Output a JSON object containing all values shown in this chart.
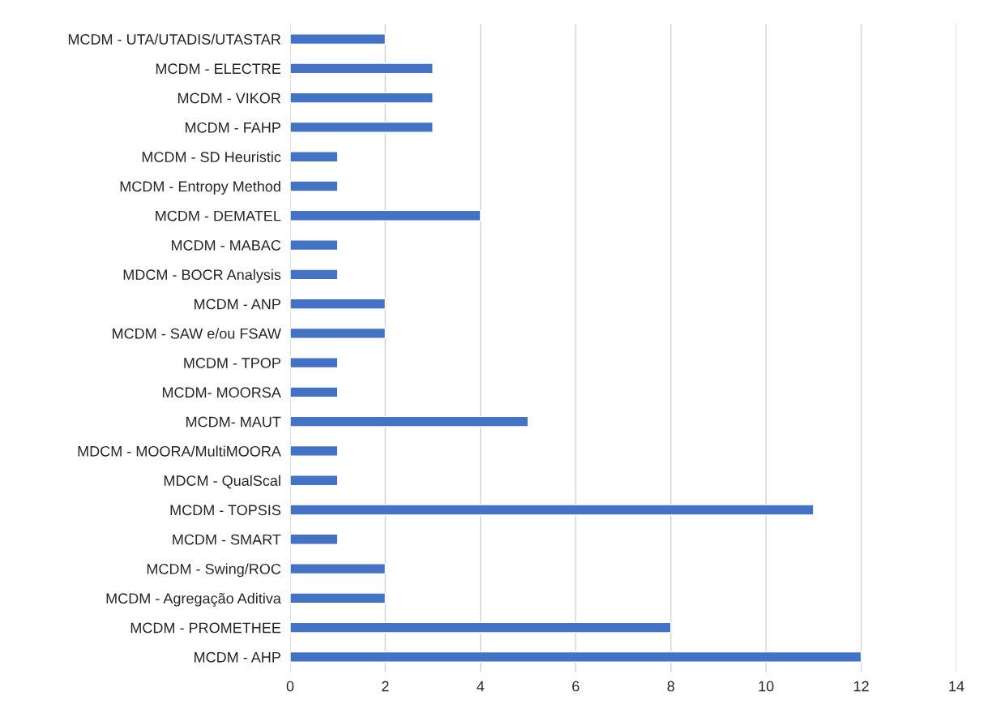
{
  "chart_data": {
    "type": "bar",
    "orientation": "horizontal",
    "categories": [
      "MCDM - UTA/UTADIS/UTASTAR",
      "MCDM - ELECTRE",
      "MCDM - VIKOR",
      "MCDM - FAHP",
      "MCDM - SD Heuristic",
      "MCDM - Entropy Method",
      "MCDM - DEMATEL",
      "MCDM - MABAC",
      "MDCM - BOCR Analysis",
      "MCDM - ANP",
      "MCDM - SAW e/ou FSAW",
      "MCDM - TPOP",
      "MCDM- MOORSA",
      "MCDM- MAUT",
      "MDCM - MOORA/MultiMOORA",
      "MDCM - QualScal",
      "MCDM - TOPSIS",
      "MCDM - SMART",
      "MCDM - Swing/ROC",
      "MCDM - Agregação Aditiva",
      "MCDM - PROMETHEE",
      "MCDM - AHP"
    ],
    "values": [
      2,
      3,
      3,
      3,
      1,
      1,
      4,
      1,
      1,
      2,
      2,
      1,
      1,
      5,
      1,
      1,
      11,
      1,
      2,
      2,
      8,
      12
    ],
    "color": "#4472c4",
    "xlim": [
      0,
      14
    ],
    "xticks": [
      0,
      2,
      4,
      6,
      8,
      10,
      12,
      14
    ],
    "grid": "x"
  }
}
